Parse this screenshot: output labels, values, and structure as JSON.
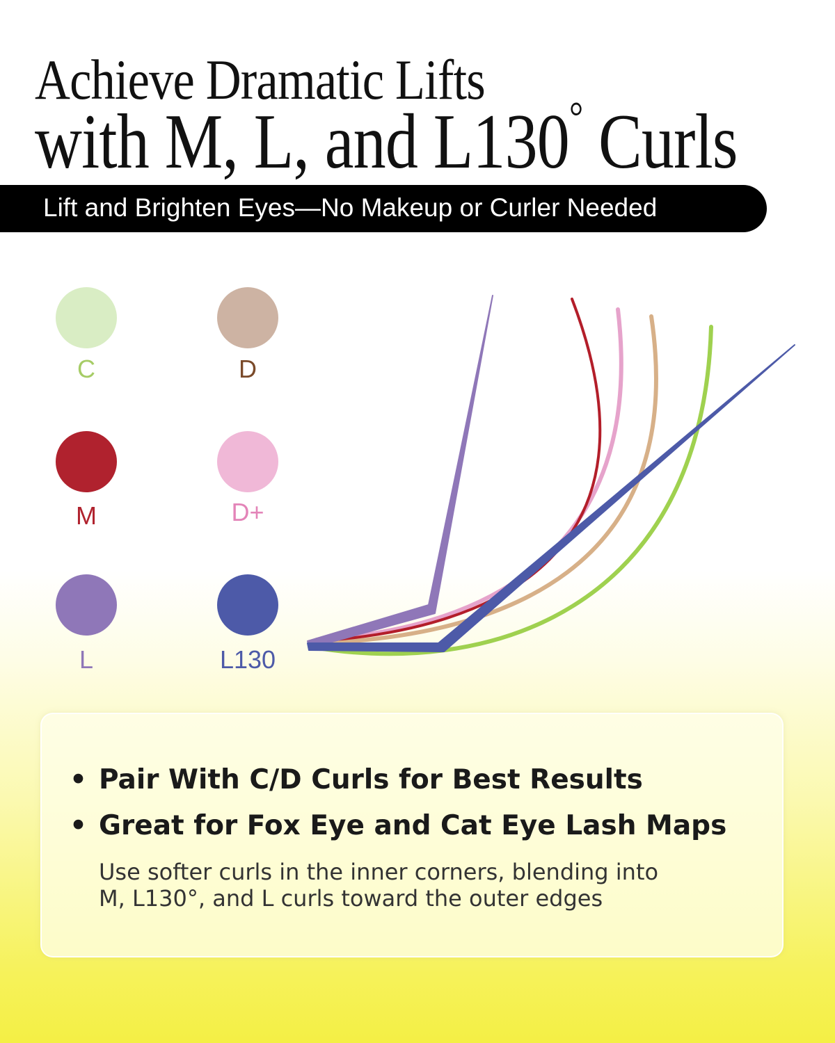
{
  "header": {
    "title_line1": "Achieve Dramatic Lifts",
    "title_line2_prefix": "with M, L, and L130",
    "title_degree": "°",
    "title_line2_suffix": " Curls",
    "banner": "Lift and Brighten Eyes—No Makeup or Curler Needed"
  },
  "curls": [
    {
      "label": "C",
      "swatch_color": "#d9edc4",
      "label_color": "#a6cc66",
      "line_color": "#9fd14f"
    },
    {
      "label": "D",
      "swatch_color": "#cdb3a3",
      "label_color": "#7a4a2a",
      "line_color": "#d7b088"
    },
    {
      "label": "M",
      "swatch_color": "#b0222e",
      "label_color": "#b0222e",
      "line_color": "#b31e2a"
    },
    {
      "label": "D+",
      "swatch_color": "#f0b8d7",
      "label_color": "#e384b8",
      "line_color": "#e6a3cb"
    },
    {
      "label": "L",
      "swatch_color": "#8f77b8",
      "label_color": "#8f77b8",
      "line_color": "#8f77b8"
    },
    {
      "label": "L130",
      "swatch_color": "#4d5aa8",
      "label_color": "#4d5aa8",
      "line_color": "#4d5aa8"
    }
  ],
  "card": {
    "bullets": [
      "Pair With C/D Curls for Best Results",
      "Great for Fox Eye and Cat Eye Lash Maps"
    ],
    "bullet_symbol": "•",
    "note_line1": "Use softer curls in the inner corners, blending into",
    "note_line2": "M, L130°, and L curls toward the outer edges"
  }
}
